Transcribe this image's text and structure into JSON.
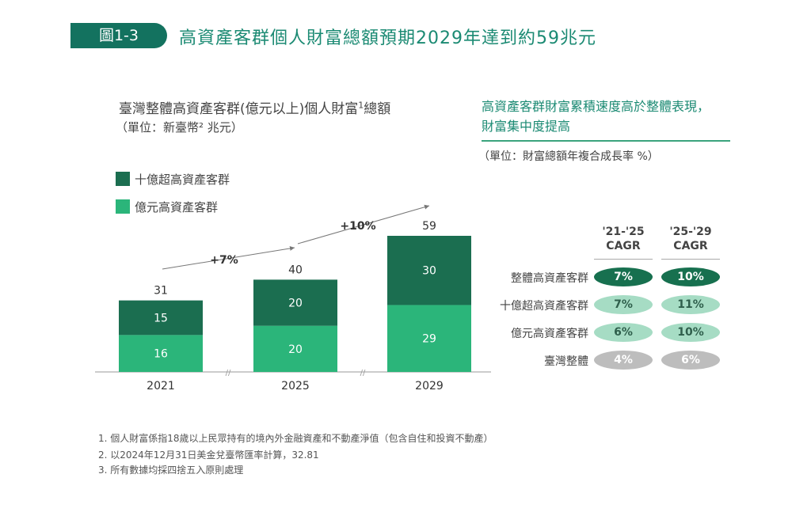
{
  "header": {
    "tag": "圖1-3",
    "title": "高資產客群個人財富總額預期2029年達到約59兆元"
  },
  "left": {
    "title": "臺灣整體高資產客群(億元以上)個人財富",
    "title_sup": "1",
    "title_tail": "總額",
    "unit": "（單位：新臺幣² 兆元）"
  },
  "right": {
    "title_line1": "高資產客群財富累積速度高於整體表現，",
    "title_line2": "財富集中度提高",
    "unit": "（單位：財富總額年複合成長率 %）",
    "columns": [
      "'21-'25 CAGR",
      "'25-'29 CAGR"
    ],
    "rows": [
      {
        "label": "整體高資產客群",
        "values": [
          "7%",
          "10%"
        ],
        "style": "dark"
      },
      {
        "label": "十億超高資產客群",
        "values": [
          "7%",
          "11%"
        ],
        "style": "light"
      },
      {
        "label": "億元高資產客群",
        "values": [
          "6%",
          "10%"
        ],
        "style": "light"
      },
      {
        "label": "臺灣整體",
        "values": [
          "4%",
          "6%"
        ],
        "style": "gray"
      }
    ],
    "colors": {
      "dark": "#17704f",
      "light": "#a6dcc4",
      "gray": "#bdbdbd"
    }
  },
  "chart_data": {
    "type": "bar",
    "stacked": true,
    "categories": [
      "2021",
      "2025",
      "2029"
    ],
    "series": [
      {
        "name": "億元高資產客群",
        "values": [
          16,
          20,
          29
        ],
        "color": "#2bb57a"
      },
      {
        "name": "十億超高資產客群",
        "values": [
          15,
          20,
          30
        ],
        "color": "#1b6e50"
      }
    ],
    "totals": [
      31,
      40,
      59
    ],
    "growth_annotations": [
      "+7%",
      "+10%"
    ],
    "ylim": [
      0,
      59
    ],
    "legend": "top-left",
    "grid": false
  },
  "notes": [
    "1. 個人財富係指18歲以上民眾持有的境內外金融資產和不動產淨值（包含自住和投資不動產）",
    "2. 以2024年12月31日美金兌臺幣匯率計算，32.81",
    "3. 所有數據均採四捨五入原則處理"
  ]
}
